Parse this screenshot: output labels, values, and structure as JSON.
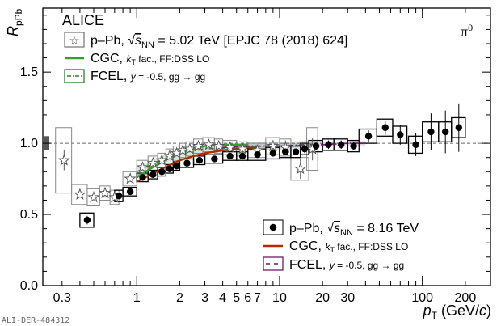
{
  "chart_data": {
    "type": "scatter",
    "experiment": "ALICE",
    "particle": "π",
    "particle_sup": "0",
    "ylabel_main": "R",
    "ylabel_sub": "pPb",
    "xlabel_main": "p",
    "xlabel_sub": "T",
    "xlabel_unit_open": " (GeV/",
    "xlabel_unit_c": "c",
    "xlabel_unit_close": ")",
    "xscale": "log",
    "xlim": [
      0.22,
      300
    ],
    "ylim": [
      0,
      1.95
    ],
    "x_ticks": [
      {
        "v": 0.3,
        "label": "0.3"
      },
      {
        "v": 1,
        "label": "1"
      },
      {
        "v": 2,
        "label": "2"
      },
      {
        "v": 3,
        "label": "3"
      },
      {
        "v": 4,
        "label": "4"
      },
      {
        "v": 5,
        "label": "5"
      },
      {
        "v": 6,
        "label": "6"
      },
      {
        "v": 7,
        "label": "7"
      },
      {
        "v": 10,
        "label": "10"
      },
      {
        "v": 20,
        "label": "20"
      },
      {
        "v": 30,
        "label": "30"
      },
      {
        "v": 100,
        "label": "100"
      },
      {
        "v": 200,
        "label": "200"
      }
    ],
    "y_ticks": [
      {
        "v": 0.0,
        "label": "0.0"
      },
      {
        "v": 0.5,
        "label": "0.5"
      },
      {
        "v": 1.0,
        "label": "1.0"
      },
      {
        "v": 1.5,
        "label": "1.5"
      }
    ],
    "reference_line": 1.0,
    "series": [
      {
        "name": "p–Pb, √s_NN = 5.02 TeV [EPJC 78 (2018) 624]",
        "label_main": "p–Pb, ",
        "label_energy": " = 5.02 TeV [EPJC 78 (2018) 624]",
        "marker": "open-star",
        "color": "#555555",
        "points": [
          {
            "x": 0.31,
            "y": 0.88,
            "ex": 0.04,
            "ey": 0.07,
            "sy": 0.23
          },
          {
            "x": 0.4,
            "y": 0.64,
            "ex": 0.05,
            "ey": 0.02,
            "sy": 0.07
          },
          {
            "x": 0.5,
            "y": 0.62,
            "ex": 0.05,
            "ey": 0.02,
            "sy": 0.06
          },
          {
            "x": 0.6,
            "y": 0.65,
            "ex": 0.05,
            "ey": 0.02,
            "sy": 0.05
          },
          {
            "x": 0.7,
            "y": 0.62,
            "ex": 0.05,
            "ey": 0.02,
            "sy": 0.05
          },
          {
            "x": 0.9,
            "y": 0.75,
            "ex": 0.1,
            "ey": 0.02,
            "sy": 0.05
          },
          {
            "x": 1.1,
            "y": 0.83,
            "ex": 0.1,
            "ey": 0.02,
            "sy": 0.05
          },
          {
            "x": 1.3,
            "y": 0.86,
            "ex": 0.1,
            "ey": 0.02,
            "sy": 0.05
          },
          {
            "x": 1.5,
            "y": 0.88,
            "ex": 0.1,
            "ey": 0.02,
            "sy": 0.05
          },
          {
            "x": 1.7,
            "y": 0.91,
            "ex": 0.1,
            "ey": 0.02,
            "sy": 0.05
          },
          {
            "x": 1.9,
            "y": 0.93,
            "ex": 0.1,
            "ey": 0.02,
            "sy": 0.05
          },
          {
            "x": 2.1,
            "y": 0.95,
            "ex": 0.1,
            "ey": 0.02,
            "sy": 0.05
          },
          {
            "x": 2.35,
            "y": 0.96,
            "ex": 0.15,
            "ey": 0.02,
            "sy": 0.05
          },
          {
            "x": 2.7,
            "y": 0.98,
            "ex": 0.2,
            "ey": 0.02,
            "sy": 0.05
          },
          {
            "x": 3.2,
            "y": 0.99,
            "ex": 0.3,
            "ey": 0.02,
            "sy": 0.05
          },
          {
            "x": 3.75,
            "y": 0.98,
            "ex": 0.25,
            "ey": 0.02,
            "sy": 0.05
          },
          {
            "x": 4.5,
            "y": 0.97,
            "ex": 0.5,
            "ey": 0.02,
            "sy": 0.05
          },
          {
            "x": 5.5,
            "y": 0.96,
            "ex": 0.5,
            "ey": 0.03,
            "sy": 0.05
          },
          {
            "x": 7.0,
            "y": 0.95,
            "ex": 1.0,
            "ey": 0.03,
            "sy": 0.05
          },
          {
            "x": 9.0,
            "y": 0.98,
            "ex": 1.0,
            "ey": 0.04,
            "sy": 0.06
          },
          {
            "x": 11.0,
            "y": 0.97,
            "ex": 1.0,
            "ey": 0.05,
            "sy": 0.06
          },
          {
            "x": 14.0,
            "y": 0.82,
            "ex": 2.0,
            "ey": 0.07,
            "sy": 0.08
          },
          {
            "x": 17.0,
            "y": 0.96,
            "ex": 1.5,
            "ey": 0.08,
            "sy": 0.15
          }
        ]
      },
      {
        "name": "p–Pb, √s_NN = 8.16 TeV",
        "label_main": "p–Pb, ",
        "label_energy": " = 8.16 TeV",
        "marker": "filled-circle",
        "color": "#000000",
        "points": [
          {
            "x": 0.45,
            "y": 0.46,
            "ex": 0.05,
            "ey": 0.03,
            "sy": 0.05
          },
          {
            "x": 0.75,
            "y": 0.63,
            "ex": 0.05,
            "ey": 0.02,
            "sy": 0.04
          },
          {
            "x": 0.9,
            "y": 0.66,
            "ex": 0.1,
            "ey": 0.02,
            "sy": 0.03
          },
          {
            "x": 1.1,
            "y": 0.76,
            "ex": 0.1,
            "ey": 0.02,
            "sy": 0.03
          },
          {
            "x": 1.3,
            "y": 0.78,
            "ex": 0.1,
            "ey": 0.02,
            "sy": 0.03
          },
          {
            "x": 1.5,
            "y": 0.8,
            "ex": 0.1,
            "ey": 0.02,
            "sy": 0.03
          },
          {
            "x": 1.7,
            "y": 0.82,
            "ex": 0.1,
            "ey": 0.02,
            "sy": 0.03
          },
          {
            "x": 1.9,
            "y": 0.84,
            "ex": 0.1,
            "ey": 0.02,
            "sy": 0.03
          },
          {
            "x": 2.25,
            "y": 0.86,
            "ex": 0.25,
            "ey": 0.02,
            "sy": 0.03
          },
          {
            "x": 2.75,
            "y": 0.88,
            "ex": 0.25,
            "ey": 0.02,
            "sy": 0.03
          },
          {
            "x": 3.5,
            "y": 0.89,
            "ex": 0.5,
            "ey": 0.02,
            "sy": 0.03
          },
          {
            "x": 4.5,
            "y": 0.91,
            "ex": 0.5,
            "ey": 0.02,
            "sy": 0.03
          },
          {
            "x": 5.5,
            "y": 0.91,
            "ex": 0.5,
            "ey": 0.02,
            "sy": 0.03
          },
          {
            "x": 7.0,
            "y": 0.92,
            "ex": 1.0,
            "ey": 0.02,
            "sy": 0.04
          },
          {
            "x": 9.0,
            "y": 0.93,
            "ex": 1.0,
            "ey": 0.02,
            "sy": 0.04
          },
          {
            "x": 11.0,
            "y": 0.94,
            "ex": 1.0,
            "ey": 0.02,
            "sy": 0.04
          },
          {
            "x": 13.0,
            "y": 0.94,
            "ex": 1.0,
            "ey": 0.02,
            "sy": 0.04
          },
          {
            "x": 15.0,
            "y": 0.96,
            "ex": 1.0,
            "ey": 0.03,
            "sy": 0.04
          },
          {
            "x": 18.0,
            "y": 0.98,
            "ex": 2.0,
            "ey": 0.03,
            "sy": 0.04
          },
          {
            "x": 22.0,
            "y": 0.99,
            "ex": 2.0,
            "ey": 0.03,
            "sy": 0.04
          },
          {
            "x": 27.0,
            "y": 0.99,
            "ex": 3.0,
            "ey": 0.03,
            "sy": 0.04
          },
          {
            "x": 33.0,
            "y": 0.98,
            "ex": 3.0,
            "ey": 0.03,
            "sy": 0.04
          },
          {
            "x": 42.0,
            "y": 1.05,
            "ex": 6.0,
            "ey": 0.04,
            "sy": 0.05
          },
          {
            "x": 55.0,
            "y": 1.11,
            "ex": 7.0,
            "ey": 0.05,
            "sy": 0.06
          },
          {
            "x": 70.0,
            "y": 1.06,
            "ex": 8.0,
            "ey": 0.07,
            "sy": 0.06
          },
          {
            "x": 90.0,
            "y": 0.99,
            "ex": 10.0,
            "ey": 0.08,
            "sy": 0.06
          },
          {
            "x": 115.0,
            "y": 1.08,
            "ex": 15.0,
            "ey": 0.13,
            "sy": 0.07
          },
          {
            "x": 145.0,
            "y": 1.08,
            "ex": 15.0,
            "ey": 0.15,
            "sy": 0.07
          },
          {
            "x": 180.0,
            "y": 1.11,
            "ex": 20.0,
            "ey": 0.17,
            "sy": 0.07
          }
        ]
      }
    ],
    "curves": [
      {
        "name": "CGC, k_T fac., FF:DSS LO (5.02 TeV)",
        "color": "#33a02c",
        "style": "solid",
        "x": [
          1.0,
          1.2,
          1.5,
          2.0,
          2.5,
          3.0,
          4.0,
          5.0,
          6.0
        ],
        "y": [
          0.76,
          0.81,
          0.87,
          0.93,
          0.96,
          0.98,
          0.99,
          0.99,
          0.99
        ]
      },
      {
        "name": "CGC, k_T fac., FF:DSS LO (8.16 TeV)",
        "color": "#b22a00",
        "style": "solid",
        "x": [
          1.0,
          1.2,
          1.5,
          2.0,
          2.5,
          3.0,
          4.0,
          5.0,
          6.0,
          7.0
        ],
        "y": [
          0.73,
          0.77,
          0.82,
          0.88,
          0.91,
          0.93,
          0.95,
          0.96,
          0.97,
          0.97
        ]
      },
      {
        "name": "FCEL, y = -0.5, gg → gg (5.02 TeV)",
        "color": "#2e7d32",
        "style": "dashdot",
        "x": [
          1.0,
          1.5,
          2.0,
          3.0,
          5.0,
          8.0,
          12.0,
          16.0
        ],
        "y": [
          0.8,
          0.88,
          0.93,
          0.96,
          0.97,
          0.98,
          0.98,
          0.99
        ],
        "band": 0.03
      },
      {
        "name": "FCEL, y = -0.5, gg → gg (8.16 TeV)",
        "color": "#6a1b6a",
        "style": "dashdot",
        "x": [
          4.0,
          6.0,
          10.0,
          15.0,
          20.0,
          30.0,
          40.0
        ],
        "y": [
          0.97,
          0.98,
          0.98,
          0.99,
          0.99,
          1.0,
          1.0
        ],
        "band": 0.015
      }
    ],
    "legend_top": [
      {
        "main": "CGC, ",
        "sub": " fac., FF:DSS LO",
        "color": "#33a02c",
        "style": "solid"
      },
      {
        "main": "FCEL, ",
        "sub": " = -0.5, gg → gg",
        "color": "#2e7d32",
        "style": "dashdot"
      }
    ],
    "legend_bottom": [
      {
        "main": "CGC, ",
        "sub": " fac., FF:DSS LO",
        "color": "#b22a00",
        "style": "solid"
      },
      {
        "main": "FCEL, ",
        "sub": " = -0.5, gg → gg",
        "color": "#6a1b6a",
        "style": "dashdot"
      }
    ],
    "legend_symbols": {
      "kt": "k",
      "kt_sub": "T",
      "y": "y",
      "sqrt": "√",
      "s": "s",
      "nn": "NN"
    },
    "norm_box": {
      "y": 1.0,
      "unc": 0.05,
      "color": "#555555"
    },
    "stamp": "ALI-DER-484312"
  }
}
